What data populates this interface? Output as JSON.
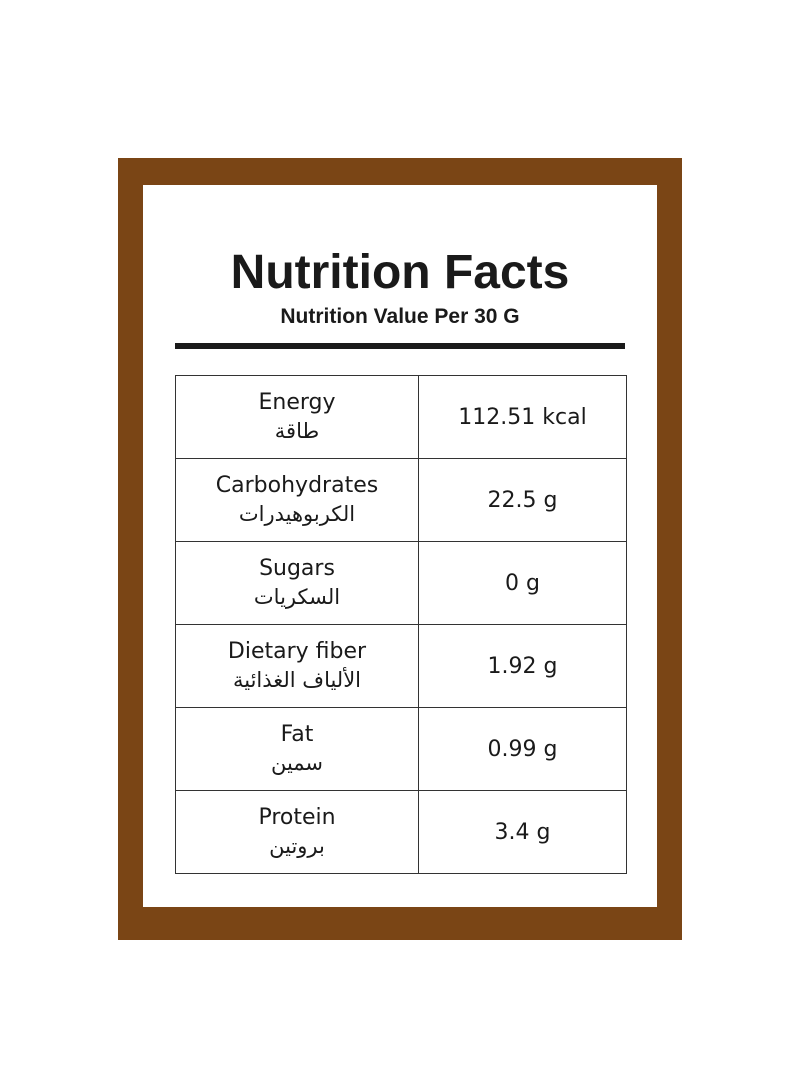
{
  "header": {
    "title": "Nutrition Facts",
    "subtitle": "Nutrition Value Per 30 G"
  },
  "table": {
    "rows": [
      [
        "Energy",
        "طاقة",
        "112.51 kcal"
      ],
      [
        "Carbohydrates",
        "الكربوهيدرات",
        "22.5 g"
      ],
      [
        "Sugars",
        "السكريات",
        "0 g"
      ],
      [
        "Dietary fiber",
        "الألياف الغذائية",
        "1.92 g"
      ],
      [
        "Fat",
        "سمين",
        "0.99 g"
      ],
      [
        "Protein",
        "بروتين",
        "3.4 g"
      ]
    ]
  }
}
